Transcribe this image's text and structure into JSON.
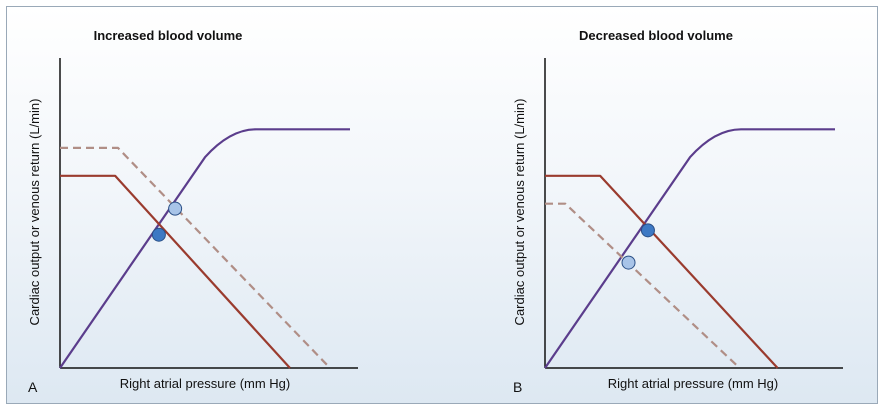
{
  "chart_data": [
    {
      "type": "line",
      "panel_letter": "A",
      "title": "Increased blood volume",
      "xlabel": "Right atrial pressure (mm Hg)",
      "ylabel": "Cardiac output or venous return (L/min)",
      "xlim": [
        0,
        10
      ],
      "ylim": [
        0,
        10
      ],
      "grid": false,
      "series": [
        {
          "role": "cardiac-output",
          "style": "solid",
          "color": "#5b3d8c",
          "x": [
            0,
            3.41,
            5.0,
            6.0,
            10.0
          ],
          "y": [
            0,
            4.3,
            6.8,
            7.7,
            7.7
          ]
        },
        {
          "role": "venous-return-normal",
          "style": "solid",
          "color": "#9a3b2e",
          "x": [
            0,
            1.9,
            7.93
          ],
          "y": [
            6.2,
            6.2,
            0
          ]
        },
        {
          "role": "venous-return-shifted",
          "style": "dashed",
          "color": "#b08e86",
          "x": [
            0,
            2.0,
            9.31
          ],
          "y": [
            7.1,
            7.1,
            0
          ]
        }
      ],
      "points": [
        {
          "x": 3.41,
          "y": 4.3,
          "color": "#3d79c4"
        },
        {
          "x": 3.97,
          "y": 5.14,
          "color": "#a8c4e8"
        }
      ]
    },
    {
      "type": "line",
      "panel_letter": "B",
      "title": "Decreased blood volume",
      "xlabel": "Right atrial pressure (mm Hg)",
      "ylabel": "Cardiac output or venous return (L/min)",
      "xlim": [
        0,
        10
      ],
      "ylim": [
        0,
        10
      ],
      "grid": false,
      "series": [
        {
          "role": "cardiac-output",
          "style": "solid",
          "color": "#5b3d8c",
          "x": [
            0,
            2.88,
            5.0,
            6.0,
            10.0
          ],
          "y": [
            0,
            3.4,
            6.8,
            7.7,
            7.7
          ]
        },
        {
          "role": "venous-return-normal",
          "style": "solid",
          "color": "#9a3b2e",
          "x": [
            0,
            1.9,
            8.02
          ],
          "y": [
            6.2,
            6.2,
            0
          ]
        },
        {
          "role": "venous-return-shifted",
          "style": "dashed",
          "color": "#b08e86",
          "x": [
            0,
            0.7,
            6.71
          ],
          "y": [
            5.3,
            5.3,
            0
          ]
        }
      ],
      "points": [
        {
          "x": 3.55,
          "y": 4.44,
          "color": "#3d79c4"
        },
        {
          "x": 2.88,
          "y": 3.4,
          "color": "#a8c4e8"
        }
      ]
    }
  ]
}
